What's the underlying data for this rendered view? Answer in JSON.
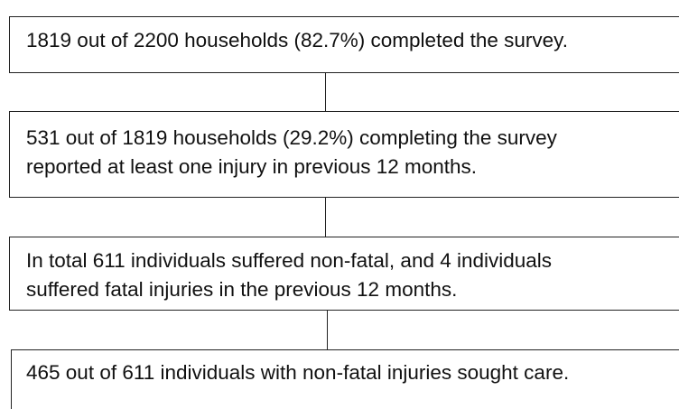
{
  "nodes": [
    {
      "lines": [
        "1819 out of 2200 households (82.7%) completed the survey."
      ]
    },
    {
      "lines": [
        "531 out of 1819 households (29.2%) completing the survey",
        "reported at least one injury in previous 12 months."
      ]
    },
    {
      "lines": [
        "In total 611 individuals suffered non-fatal, and 4 individuals",
        "suffered fatal injuries in the previous 12 months."
      ]
    },
    {
      "lines": [
        "465 out of 611 individuals with non-fatal injuries sought care."
      ]
    }
  ]
}
